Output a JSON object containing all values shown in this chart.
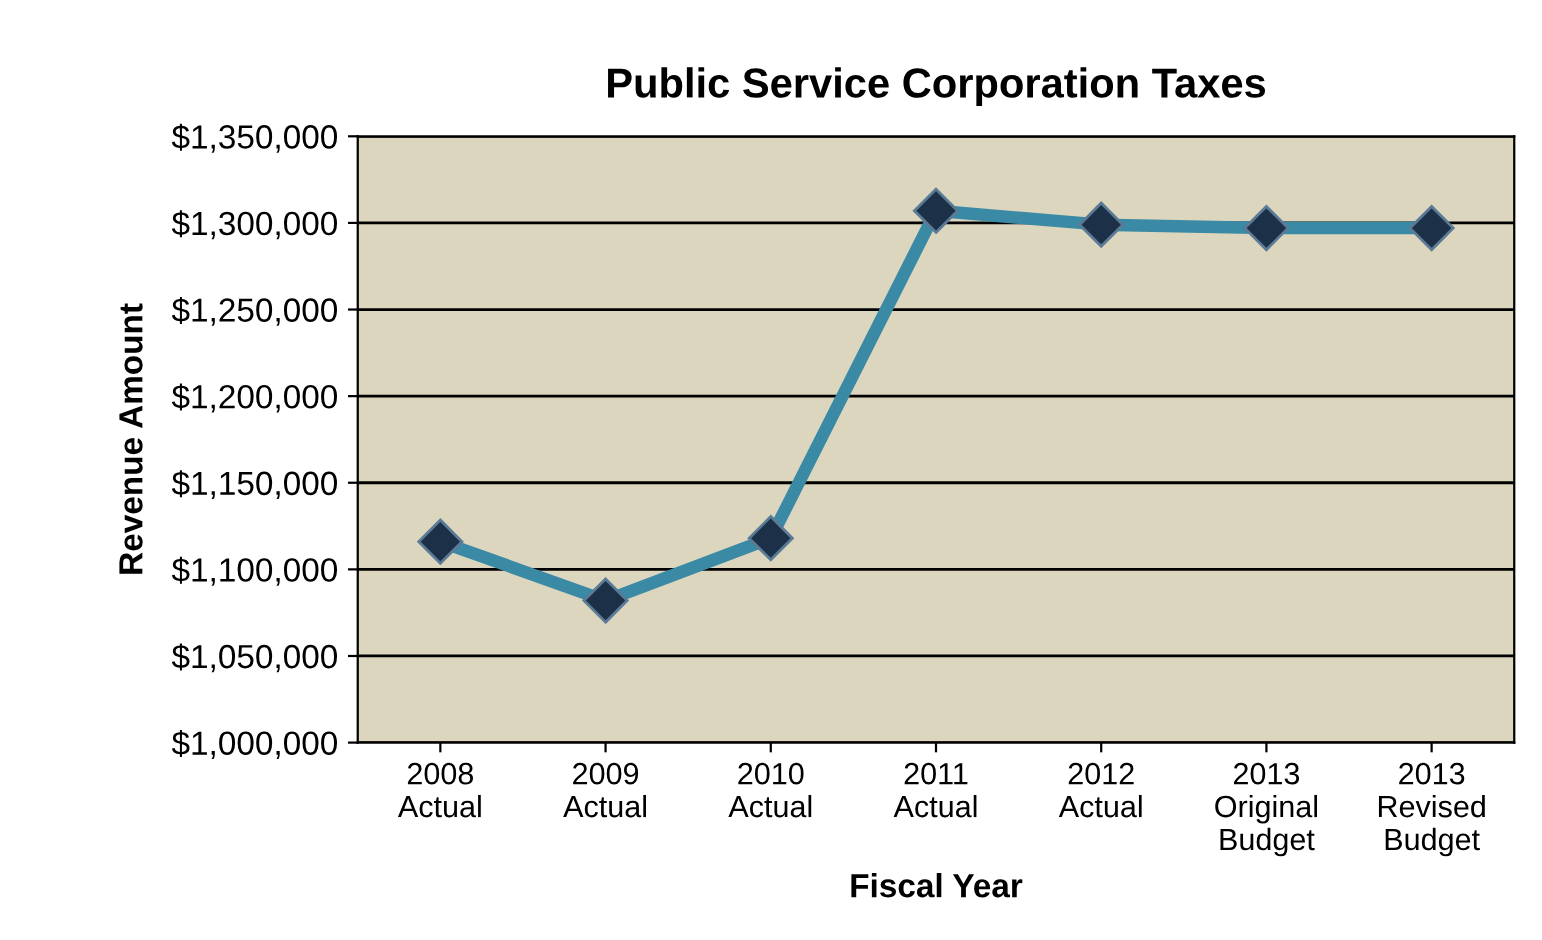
{
  "chart_data": {
    "type": "line",
    "title": "Public Service Corporation Taxes",
    "xlabel": "Fiscal Year",
    "ylabel": "Revenue Amount",
    "categories": [
      "2008\nActual",
      "2009\nActual",
      "2010\nActual",
      "2011\nActual",
      "2012\nActual",
      "2013\nOriginal\nBudget",
      "2013\nRevised\nBudget"
    ],
    "series": [
      {
        "color": "#3a8aa6",
        "values": [
          1116000,
          1082000,
          1118000,
          1307000,
          1299000,
          1297000,
          1297000
        ]
      }
    ],
    "ylim": [
      1000000,
      1350000
    ],
    "yticks": [
      {
        "value": 1000000,
        "label": "$1,000,000"
      },
      {
        "value": 1050000,
        "label": "$1,050,000"
      },
      {
        "value": 1100000,
        "label": "$1,100,000"
      },
      {
        "value": 1150000,
        "label": "$1,150,000"
      },
      {
        "value": 1200000,
        "label": "$1,200,000"
      },
      {
        "value": 1250000,
        "label": "$1,250,000"
      },
      {
        "value": 1300000,
        "label": "$1,300,000"
      },
      {
        "value": 1350000,
        "label": "$1,350,000"
      }
    ],
    "grid": "y",
    "marker": "diamond",
    "line_style": "solid"
  }
}
